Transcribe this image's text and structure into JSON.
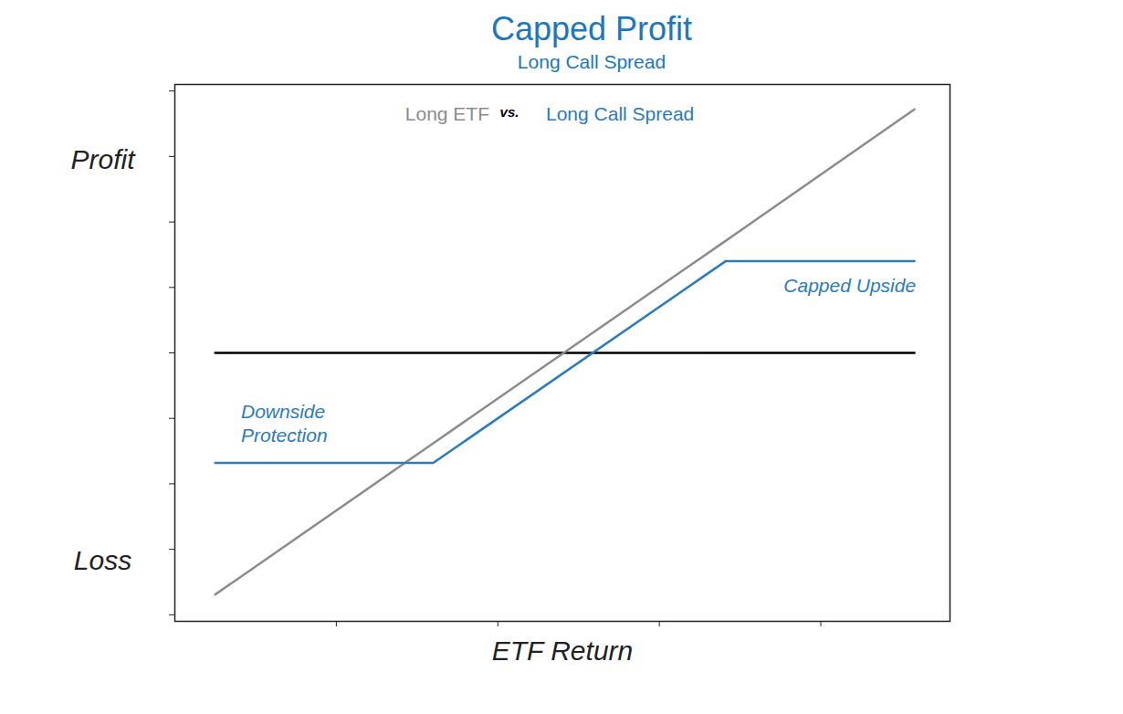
{
  "chart_data": {
    "type": "line",
    "title": "Capped Profit",
    "subtitle": "Long Call Spread",
    "x_label": "ETF Return",
    "y_label_top": "Profit",
    "y_label_bottom": "Loss",
    "x": [
      0.25,
      1.6,
      3.41,
      4.58
    ],
    "series": [
      {
        "name": "Long ETF",
        "color": "#8c8c8c",
        "values": [
          -3.69,
          -1.38,
          1.71,
          3.72
        ]
      },
      {
        "name": "Long Call Spread",
        "color": "#2b7bbf",
        "values": [
          -1.68,
          -1.68,
          1.4,
          1.4
        ]
      }
    ],
    "reference_line": {
      "x": [
        0.25,
        4.58
      ],
      "values": [
        0,
        0
      ],
      "color": "#000000"
    },
    "annotations": [
      {
        "text": "Downside\nProtection",
        "x": 0.41,
        "y": -1.06,
        "color": "#2b7bbf"
      },
      {
        "text": "Capped Upside",
        "x": 3.77,
        "y": 1.04,
        "color": "#2b7bbf"
      }
    ],
    "legend": "top",
    "legend_separator": "vs.",
    "xlim": [
      0,
      4.8
    ],
    "ylim": [
      -4.1,
      4.1
    ],
    "xticks": [
      1,
      2,
      3,
      4
    ],
    "yticks": [
      -4,
      -3,
      -2,
      -1,
      0,
      1,
      2,
      3,
      4
    ],
    "tick_labels": false,
    "grid": false
  }
}
